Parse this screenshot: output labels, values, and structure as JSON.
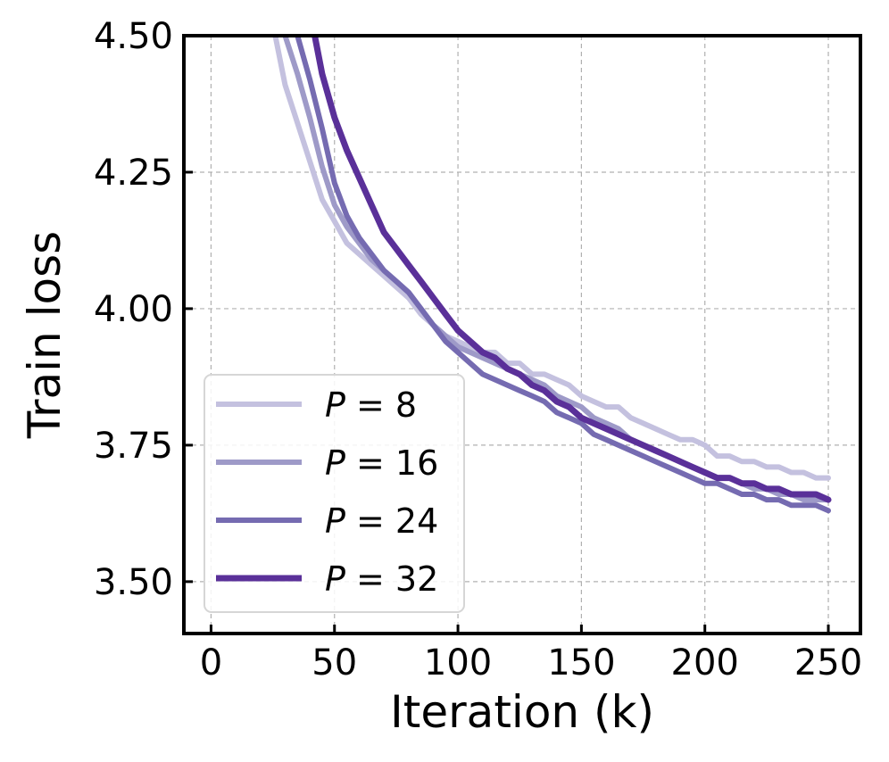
{
  "chart_data": {
    "type": "line",
    "title": "",
    "xlabel": "Iteration (k)",
    "ylabel": "Train loss",
    "xlim": [
      -11,
      263
    ],
    "ylim": [
      3.405,
      4.5
    ],
    "xticks": [
      0,
      50,
      100,
      150,
      200,
      250
    ],
    "xtick_labels": [
      "0",
      "50",
      "100",
      "150",
      "200",
      "250"
    ],
    "yticks": [
      3.5,
      3.75,
      4.0,
      4.25,
      4.5
    ],
    "ytick_labels": [
      "3.50",
      "3.75",
      "4.00",
      "4.25",
      "4.50"
    ],
    "grid": true,
    "legend_position": "lower-left",
    "series": [
      {
        "name": "P = 8",
        "var": "P",
        "eq": " = ",
        "num": "8",
        "color": "#c4c1df",
        "width": 6,
        "x": [
          26,
          30,
          35,
          40,
          45,
          50,
          55,
          60,
          65,
          70,
          75,
          80,
          85,
          90,
          95,
          100,
          105,
          110,
          115,
          120,
          125,
          130,
          135,
          140,
          145,
          150,
          155,
          160,
          165,
          170,
          175,
          180,
          185,
          190,
          195,
          200,
          205,
          210,
          215,
          220,
          225,
          230,
          235,
          240,
          245,
          250
        ],
        "y": [
          4.5,
          4.41,
          4.34,
          4.27,
          4.2,
          4.16,
          4.12,
          4.1,
          4.08,
          4.06,
          4.04,
          4.02,
          3.99,
          3.97,
          3.95,
          3.94,
          3.93,
          3.92,
          3.92,
          3.9,
          3.9,
          3.88,
          3.88,
          3.87,
          3.86,
          3.84,
          3.83,
          3.82,
          3.82,
          3.8,
          3.79,
          3.78,
          3.77,
          3.76,
          3.76,
          3.75,
          3.73,
          3.73,
          3.72,
          3.72,
          3.71,
          3.71,
          3.7,
          3.7,
          3.69,
          3.69
        ]
      },
      {
        "name": "P = 16",
        "var": "P",
        "eq": " = ",
        "num": "16",
        "color": "#9e9ac8",
        "width": 6,
        "x": [
          30,
          35,
          40,
          45,
          50,
          55,
          60,
          65,
          70,
          75,
          80,
          85,
          90,
          95,
          100,
          105,
          110,
          115,
          120,
          125,
          130,
          135,
          140,
          145,
          150,
          155,
          160,
          165,
          170,
          175,
          180,
          185,
          190,
          195,
          200,
          205,
          210,
          215,
          220,
          225,
          230,
          235,
          240,
          245,
          250
        ],
        "y": [
          4.5,
          4.43,
          4.35,
          4.26,
          4.19,
          4.15,
          4.12,
          4.09,
          4.07,
          4.05,
          4.03,
          4.0,
          3.97,
          3.95,
          3.93,
          3.92,
          3.91,
          3.9,
          3.89,
          3.88,
          3.87,
          3.86,
          3.84,
          3.83,
          3.82,
          3.8,
          3.79,
          3.78,
          3.76,
          3.75,
          3.74,
          3.73,
          3.72,
          3.71,
          3.7,
          3.69,
          3.69,
          3.68,
          3.67,
          3.67,
          3.66,
          3.66,
          3.65,
          3.65,
          3.65
        ]
      },
      {
        "name": "P = 24",
        "var": "P",
        "eq": " = ",
        "num": "24",
        "color": "#756bb1",
        "width": 6,
        "x": [
          35,
          40,
          45,
          50,
          55,
          60,
          65,
          70,
          75,
          80,
          85,
          90,
          95,
          100,
          105,
          110,
          115,
          120,
          125,
          130,
          135,
          140,
          145,
          150,
          155,
          160,
          165,
          170,
          175,
          180,
          185,
          190,
          195,
          200,
          205,
          210,
          215,
          220,
          225,
          230,
          235,
          240,
          245,
          250
        ],
        "y": [
          4.5,
          4.42,
          4.33,
          4.23,
          4.17,
          4.13,
          4.1,
          4.07,
          4.05,
          4.03,
          4.0,
          3.97,
          3.94,
          3.92,
          3.9,
          3.88,
          3.87,
          3.86,
          3.85,
          3.84,
          3.83,
          3.81,
          3.8,
          3.79,
          3.77,
          3.76,
          3.75,
          3.74,
          3.73,
          3.72,
          3.71,
          3.7,
          3.69,
          3.68,
          3.68,
          3.67,
          3.66,
          3.66,
          3.65,
          3.65,
          3.64,
          3.64,
          3.64,
          3.63
        ]
      },
      {
        "name": "P = 32",
        "var": "P",
        "eq": " = ",
        "num": "32",
        "color": "#5a3099",
        "width": 7,
        "x": [
          42,
          45,
          50,
          55,
          60,
          65,
          70,
          75,
          80,
          85,
          90,
          95,
          100,
          105,
          110,
          115,
          120,
          125,
          130,
          135,
          140,
          145,
          150,
          155,
          160,
          165,
          170,
          175,
          180,
          185,
          190,
          195,
          200,
          205,
          210,
          215,
          220,
          225,
          230,
          235,
          240,
          245,
          250
        ],
        "y": [
          4.5,
          4.43,
          4.35,
          4.29,
          4.24,
          4.19,
          4.14,
          4.11,
          4.08,
          4.05,
          4.02,
          3.99,
          3.96,
          3.94,
          3.92,
          3.91,
          3.89,
          3.88,
          3.86,
          3.85,
          3.83,
          3.82,
          3.8,
          3.79,
          3.78,
          3.77,
          3.76,
          3.75,
          3.74,
          3.73,
          3.72,
          3.71,
          3.7,
          3.69,
          3.69,
          3.68,
          3.68,
          3.67,
          3.67,
          3.66,
          3.66,
          3.66,
          3.65
        ]
      }
    ]
  }
}
